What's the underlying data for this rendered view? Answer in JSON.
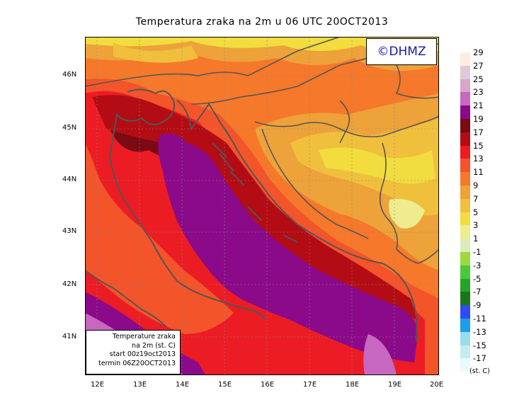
{
  "title": "Temperatura zraka na 2m u 06 UTC 20OCT2013",
  "logo": "©DHMZ",
  "infobox": {
    "line1": "Temperature zraka",
    "line2": "na 2m (st. C)",
    "line3": "start 00z19oct2013",
    "line4": "termin 06Z20OCT2013"
  },
  "latitude_labels": [
    "46N",
    "45N",
    "44N",
    "43N",
    "42N",
    "41N"
  ],
  "longitude_labels": [
    "12E",
    "13E",
    "14E",
    "15E",
    "16E",
    "17E",
    "18E",
    "19E",
    "20E"
  ],
  "legend": {
    "unit": "(st. C)",
    "items": [
      {
        "label": "29",
        "color": "#fbeee0"
      },
      {
        "label": "27",
        "color": "#e2c8d6"
      },
      {
        "label": "25",
        "color": "#d7a6c8"
      },
      {
        "label": "23",
        "color": "#c868c0"
      },
      {
        "label": "21",
        "color": "#8a0a8a"
      },
      {
        "label": "19",
        "color": "#7a0a14"
      },
      {
        "label": "17",
        "color": "#b40c14"
      },
      {
        "label": "15",
        "color": "#ec1c24"
      },
      {
        "label": "13",
        "color": "#f3542a"
      },
      {
        "label": "11",
        "color": "#f6782a"
      },
      {
        "label": "9",
        "color": "#eea23a"
      },
      {
        "label": "7",
        "color": "#f0c03c"
      },
      {
        "label": "5",
        "color": "#f2dc3e"
      },
      {
        "label": "3",
        "color": "#eeec8e"
      },
      {
        "label": "1",
        "color": "#dcecb8"
      },
      {
        "label": "-1",
        "color": "#9ed83c"
      },
      {
        "label": "-3",
        "color": "#4cc63a"
      },
      {
        "label": "-5",
        "color": "#24a428"
      },
      {
        "label": "-7",
        "color": "#187818"
      },
      {
        "label": "-9",
        "color": "#2e4cf2"
      },
      {
        "label": "-11",
        "color": "#1c9ee8"
      },
      {
        "label": "-13",
        "color": "#9adcec"
      },
      {
        "label": "-15",
        "color": "#c4ecf0"
      },
      {
        "label": "-17",
        "color": "#e8fafa"
      }
    ]
  },
  "colors": {
    "sea": "#8a0a8a",
    "warm_sea": "#c868c0",
    "coast_dark": "#7a0a14",
    "coast": "#b40c14",
    "red": "#ec1c24",
    "orange_red": "#f3542a",
    "orange": "#f6782a",
    "amber": "#eea23a",
    "yellow": "#f2dc3e",
    "pale": "#eeec8e",
    "border_line": "#555555",
    "grid": "#888888"
  }
}
